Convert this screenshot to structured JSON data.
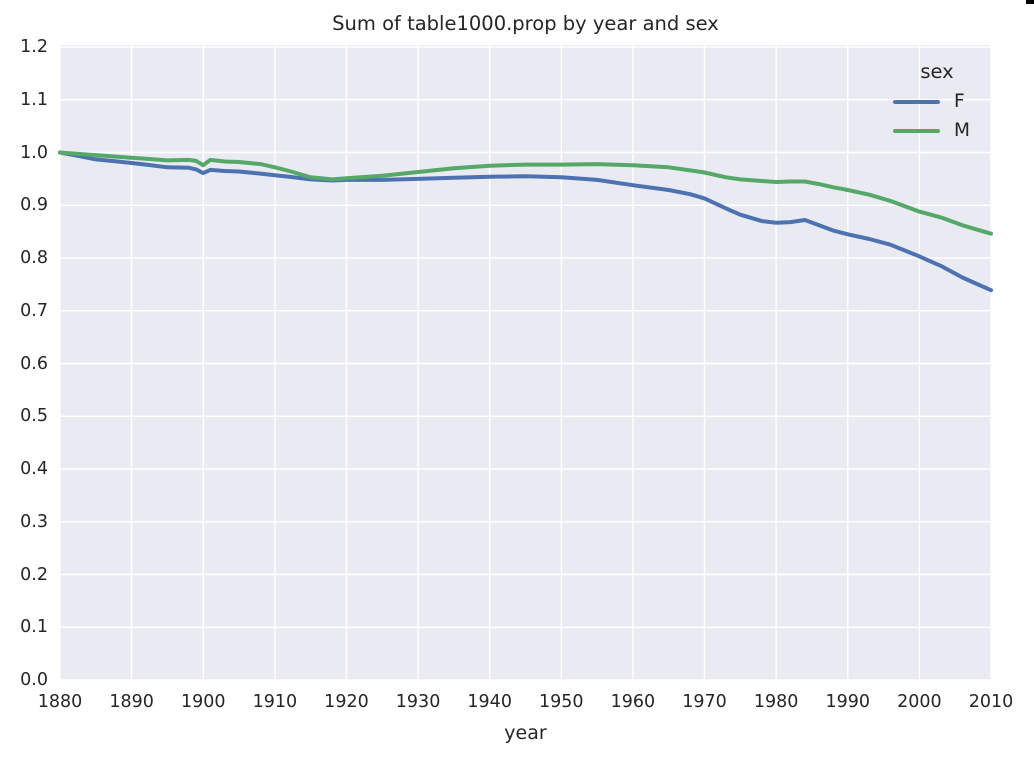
{
  "figure": {
    "title": "Sum of table1000.prop by year and sex",
    "background_color": "#ffffff",
    "plot_background_color": "#eaeaf2",
    "grid_color": "#ffffff",
    "text_color": "#262626"
  },
  "legend": {
    "title": "sex",
    "position": "upper right"
  },
  "x_axis": {
    "label": "year",
    "tick_labels": [
      "1880",
      "1890",
      "1900",
      "1910",
      "1920",
      "1930",
      "1940",
      "1950",
      "1960",
      "1970",
      "1980",
      "1990",
      "2000",
      "2010"
    ]
  },
  "y_axis": {
    "label": "",
    "tick_labels": [
      "0.0",
      "0.1",
      "0.2",
      "0.3",
      "0.4",
      "0.5",
      "0.6",
      "0.7",
      "0.8",
      "0.9",
      "1.0",
      "1.1",
      "1.2"
    ]
  },
  "chart_data": {
    "type": "line",
    "title": "Sum of table1000.prop by year and sex",
    "xlabel": "year",
    "ylabel": "",
    "xlim": [
      1880,
      2010
    ],
    "ylim": [
      0.0,
      1.2
    ],
    "grid": true,
    "grid_style": "seaborn-darkgrid",
    "legend_title": "sex",
    "legend_position": "upper right",
    "x": [
      1880,
      1882,
      1885,
      1888,
      1890,
      1892,
      1895,
      1898,
      1899,
      1900,
      1901,
      1903,
      1905,
      1908,
      1910,
      1912,
      1915,
      1918,
      1920,
      1925,
      1930,
      1935,
      1940,
      1945,
      1950,
      1955,
      1960,
      1965,
      1968,
      1970,
      1973,
      1975,
      1978,
      1980,
      1982,
      1984,
      1986,
      1988,
      1990,
      1993,
      1996,
      2000,
      2003,
      2006,
      2010
    ],
    "series": [
      {
        "name": "F",
        "color": "#4c72b0",
        "values": [
          1.0,
          0.995,
          0.987,
          0.983,
          0.98,
          0.977,
          0.972,
          0.971,
          0.968,
          0.961,
          0.967,
          0.965,
          0.964,
          0.96,
          0.957,
          0.954,
          0.949,
          0.947,
          0.948,
          0.948,
          0.95,
          0.952,
          0.954,
          0.955,
          0.953,
          0.948,
          0.938,
          0.929,
          0.921,
          0.913,
          0.894,
          0.882,
          0.87,
          0.867,
          0.868,
          0.872,
          0.862,
          0.852,
          0.845,
          0.836,
          0.825,
          0.803,
          0.785,
          0.763,
          0.739
        ]
      },
      {
        "name": "M",
        "color": "#55a868",
        "values": [
          1.0,
          0.998,
          0.995,
          0.992,
          0.99,
          0.988,
          0.985,
          0.986,
          0.984,
          0.976,
          0.986,
          0.983,
          0.982,
          0.978,
          0.972,
          0.965,
          0.953,
          0.949,
          0.951,
          0.956,
          0.963,
          0.97,
          0.975,
          0.977,
          0.977,
          0.978,
          0.976,
          0.972,
          0.966,
          0.962,
          0.953,
          0.949,
          0.946,
          0.944,
          0.945,
          0.945,
          0.94,
          0.934,
          0.929,
          0.92,
          0.908,
          0.888,
          0.877,
          0.862,
          0.846
        ]
      }
    ]
  }
}
